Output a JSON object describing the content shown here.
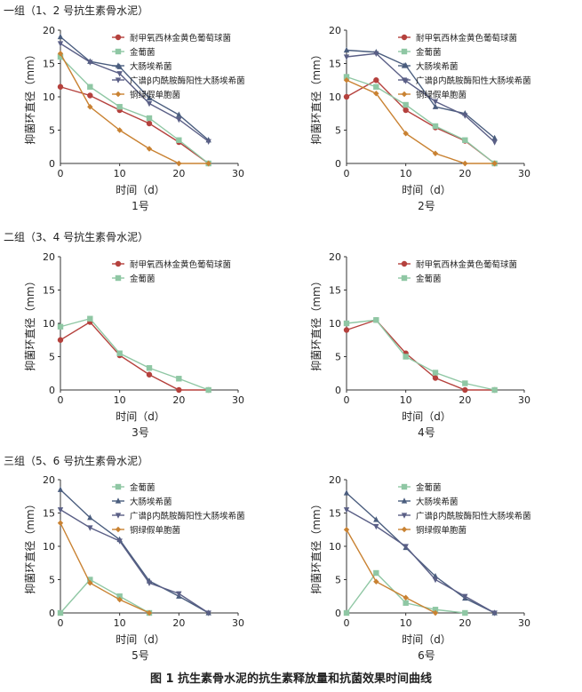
{
  "groups": [
    {
      "title": "一组（1、2 号抗生素骨水泥）"
    },
    {
      "title": "二组（3、4 号抗生素骨水泥）"
    },
    {
      "title": "三组（5、6 号抗生素骨水泥）"
    }
  ],
  "figure_caption": "图 1   抗生素骨水泥的抗生素释放量和抗菌效果时间曲线",
  "series_styles": {
    "耐甲氧西林金黄色葡萄球菌": {
      "color": "#b5413d",
      "marker": "circle"
    },
    "金葡菌": {
      "color": "#8fc7a4",
      "marker": "square"
    },
    "大肠埃希菌": {
      "color": "#4a5d7e",
      "marker": "triangle"
    },
    "广谱β内酰胺酶阳性大肠埃希菌": {
      "color": "#5a5f86",
      "marker": "triangle-down"
    },
    "铜绿假单胞菌": {
      "color": "#c98232",
      "marker": "diamond"
    }
  },
  "chart_data": [
    {
      "type": "line",
      "title": "1号",
      "xlabel": "时间（d）",
      "ylabel": "抑菌环直径（mm）",
      "xlim": [
        0,
        30
      ],
      "ylim": [
        0,
        20
      ],
      "xticks": [
        0,
        10,
        20,
        30
      ],
      "yticks": [
        5,
        10,
        15,
        20
      ],
      "legend": "top-right",
      "series": [
        {
          "name": "耐甲氧西林金黄色葡萄球菌",
          "x": [
            0,
            5,
            10,
            15,
            20,
            25
          ],
          "y": [
            11.5,
            10.2,
            8.0,
            6.0,
            3.2,
            0
          ]
        },
        {
          "name": "金葡菌",
          "x": [
            0,
            5,
            10,
            15,
            20,
            25
          ],
          "y": [
            16.0,
            11.5,
            8.5,
            6.8,
            3.5,
            0
          ]
        },
        {
          "name": "大肠埃希菌",
          "x": [
            0,
            5,
            10,
            15,
            20,
            25
          ],
          "y": [
            19.0,
            15.3,
            14.5,
            9.8,
            7.3,
            3.5
          ]
        },
        {
          "name": "广谱β内酰胺酶阳性大肠埃希菌",
          "x": [
            0,
            5,
            10,
            15,
            20,
            25
          ],
          "y": [
            18.0,
            15.2,
            13.5,
            9.0,
            6.6,
            3.3
          ]
        },
        {
          "name": "铜绿假单胞菌",
          "x": [
            0,
            5,
            10,
            15,
            20,
            25
          ],
          "y": [
            16.5,
            8.5,
            5.0,
            2.2,
            0,
            0
          ]
        }
      ]
    },
    {
      "type": "line",
      "title": "2号",
      "xlabel": "时间（d）",
      "ylabel": "抑菌环直径（mm）",
      "xlim": [
        0,
        30
      ],
      "ylim": [
        0,
        20
      ],
      "xticks": [
        0,
        10,
        20,
        30
      ],
      "yticks": [
        5,
        10,
        15,
        20
      ],
      "legend": "top-right",
      "series": [
        {
          "name": "耐甲氧西林金黄色葡萄球菌",
          "x": [
            0,
            5,
            10,
            15,
            20,
            25
          ],
          "y": [
            10.0,
            12.5,
            8.0,
            5.4,
            3.4,
            0
          ]
        },
        {
          "name": "金葡菌",
          "x": [
            0,
            5,
            10,
            15,
            20,
            25
          ],
          "y": [
            13.0,
            11.5,
            8.8,
            5.6,
            3.5,
            0
          ]
        },
        {
          "name": "大肠埃希菌",
          "x": [
            0,
            5,
            10,
            15,
            20,
            25
          ],
          "y": [
            17.0,
            16.7,
            14.7,
            8.5,
            7.5,
            3.8
          ]
        },
        {
          "name": "广谱β内酰胺酶阳性大肠埃希菌",
          "x": [
            0,
            5,
            10,
            15,
            20,
            25
          ],
          "y": [
            16.0,
            16.5,
            12.4,
            9.3,
            7.2,
            3.2
          ]
        },
        {
          "name": "铜绿假单胞菌",
          "x": [
            0,
            5,
            10,
            15,
            20,
            25
          ],
          "y": [
            12.5,
            10.5,
            4.5,
            1.5,
            0,
            0
          ]
        }
      ]
    },
    {
      "type": "line",
      "title": "3号",
      "xlabel": "时间（d）",
      "ylabel": "抑菌环直径（mm）",
      "xlim": [
        0,
        30
      ],
      "ylim": [
        0,
        20
      ],
      "xticks": [
        0,
        10,
        20,
        30
      ],
      "yticks": [
        5,
        10,
        15,
        20
      ],
      "legend": "top-right",
      "series": [
        {
          "name": "耐甲氧西林金黄色葡萄球菌",
          "x": [
            0,
            5,
            10,
            15,
            20,
            25
          ],
          "y": [
            7.5,
            10.2,
            5.2,
            2.3,
            0,
            0
          ]
        },
        {
          "name": "金葡菌",
          "x": [
            0,
            5,
            10,
            15,
            20,
            25
          ],
          "y": [
            9.5,
            10.7,
            5.5,
            3.3,
            1.7,
            0
          ]
        }
      ]
    },
    {
      "type": "line",
      "title": "4号",
      "xlabel": "时间（d）",
      "ylabel": "抑菌环直径（mm）",
      "xlim": [
        0,
        30
      ],
      "ylim": [
        0,
        20
      ],
      "xticks": [
        0,
        10,
        20,
        30
      ],
      "yticks": [
        5,
        10,
        15,
        20
      ],
      "legend": "top-right",
      "series": [
        {
          "name": "耐甲氧西林金黄色葡萄球菌",
          "x": [
            0,
            5,
            10,
            15,
            20,
            25
          ],
          "y": [
            9.0,
            10.5,
            5.5,
            1.8,
            0,
            0
          ]
        },
        {
          "name": "金葡菌",
          "x": [
            0,
            5,
            10,
            15,
            20,
            25
          ],
          "y": [
            10.0,
            10.5,
            5.0,
            2.6,
            1.0,
            0
          ]
        }
      ]
    },
    {
      "type": "line",
      "title": "5号",
      "xlabel": "时间（d）",
      "ylabel": "抑菌环直径（mm）",
      "xlim": [
        0,
        30
      ],
      "ylim": [
        0,
        20
      ],
      "xticks": [
        0,
        10,
        20,
        30
      ],
      "yticks": [
        5,
        10,
        15,
        20
      ],
      "legend": "top-right",
      "series": [
        {
          "name": "金葡菌",
          "x": [
            0,
            5,
            10,
            15
          ],
          "y": [
            0,
            5.0,
            2.5,
            0
          ]
        },
        {
          "name": "大肠埃希菌",
          "x": [
            0,
            5,
            10,
            15,
            20,
            25
          ],
          "y": [
            18.5,
            14.3,
            11.0,
            4.8,
            2.5,
            0
          ]
        },
        {
          "name": "广谱β内酰胺酶阳性大肠埃希菌",
          "x": [
            0,
            5,
            10,
            15,
            20,
            25
          ],
          "y": [
            15.5,
            12.8,
            10.8,
            4.5,
            2.9,
            0
          ]
        },
        {
          "name": "铜绿假单胞菌",
          "x": [
            0,
            5,
            10,
            15
          ],
          "y": [
            13.5,
            4.5,
            2.0,
            0
          ]
        }
      ]
    },
    {
      "type": "line",
      "title": "6号",
      "xlabel": "时间（d）",
      "ylabel": "抑菌环直径（mm）",
      "xlim": [
        0,
        30
      ],
      "ylim": [
        0,
        20
      ],
      "xticks": [
        0,
        10,
        20,
        30
      ],
      "yticks": [
        5,
        10,
        15,
        20
      ],
      "legend": "top-right",
      "series": [
        {
          "name": "金葡菌",
          "x": [
            0,
            5,
            10,
            15,
            20
          ],
          "y": [
            0,
            6.0,
            1.5,
            0.5,
            0
          ]
        },
        {
          "name": "大肠埃希菌",
          "x": [
            0,
            5,
            10,
            15,
            20,
            25
          ],
          "y": [
            18.0,
            14.0,
            9.8,
            5.5,
            2.2,
            0
          ]
        },
        {
          "name": "广谱β内酰胺酶阳性大肠埃希菌",
          "x": [
            0,
            5,
            10,
            15,
            20,
            25
          ],
          "y": [
            15.5,
            13.0,
            10.0,
            5.0,
            2.5,
            0
          ]
        },
        {
          "name": "铜绿假单胞菌",
          "x": [
            0,
            5,
            10,
            15
          ],
          "y": [
            12.5,
            4.7,
            2.3,
            0
          ]
        }
      ]
    }
  ]
}
